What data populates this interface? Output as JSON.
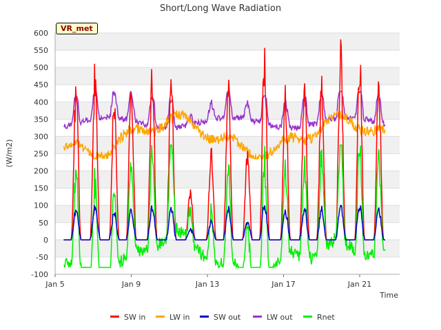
{
  "chart_data": {
    "type": "line",
    "title": "Short/Long Wave Radiation",
    "xlabel": "Time",
    "ylabel": "(W/m2)",
    "badge": "VR_met",
    "ylim": [
      -100,
      600
    ],
    "yticks": [
      -100,
      -50,
      0,
      50,
      100,
      150,
      200,
      250,
      300,
      350,
      400,
      450,
      500,
      550,
      600
    ],
    "xlim": [
      "Jan 5",
      "Jan 23"
    ],
    "xticks": [
      "Jan 5",
      "Jan 9",
      "Jan 13",
      "Jan 17",
      "Jan 21"
    ],
    "grid": "horizontal bands",
    "legend_position": "bottom",
    "series": [
      {
        "name": "SW in",
        "color": "#ff0000",
        "peaks": [
          {
            "day": 6.1,
            "value": 465
          },
          {
            "day": 7.1,
            "value": 515
          },
          {
            "day": 8.1,
            "value": 430
          },
          {
            "day": 9.0,
            "value": 450
          },
          {
            "day": 10.1,
            "value": 505
          },
          {
            "day": 11.1,
            "value": 495
          },
          {
            "day": 12.1,
            "value": 145
          },
          {
            "day": 13.2,
            "value": 268
          },
          {
            "day": 14.1,
            "value": 500
          },
          {
            "day": 15.1,
            "value": 260
          },
          {
            "day": 16.0,
            "value": 555
          },
          {
            "day": 17.1,
            "value": 435
          },
          {
            "day": 18.1,
            "value": 462
          },
          {
            "day": 19.0,
            "value": 455
          },
          {
            "day": 20.0,
            "value": 560
          },
          {
            "day": 21.0,
            "value": 545
          },
          {
            "day": 22.0,
            "value": 470
          }
        ]
      },
      {
        "name": "LW in",
        "color": "#ffa500",
        "range": [
          235,
          390
        ]
      },
      {
        "name": "SW out",
        "color": "#0000cd",
        "max": 100
      },
      {
        "name": "LW out",
        "color": "#9932cc",
        "range": [
          315,
          430
        ]
      },
      {
        "name": "Rnet",
        "color": "#00ee00",
        "range": [
          -80,
          275
        ]
      }
    ]
  }
}
